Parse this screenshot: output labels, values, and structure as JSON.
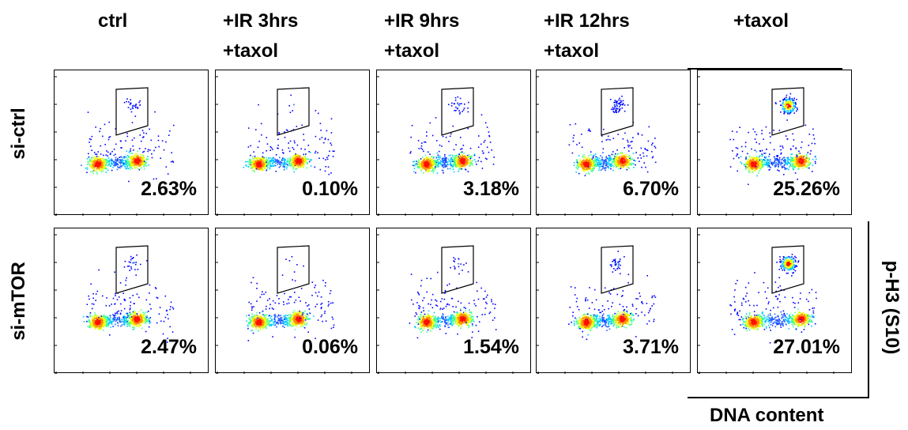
{
  "figure": {
    "column_titles": [
      [
        "ctrl"
      ],
      [
        "+IR 3hrs",
        "+taxol"
      ],
      [
        "+IR 9hrs",
        "+taxol"
      ],
      [
        "+IR 12hrs",
        "+taxol"
      ],
      [
        "+taxol"
      ]
    ],
    "row_titles": [
      "si-ctrl",
      "si-mTOR"
    ],
    "x_axis_label": "DNA content",
    "y_axis_label": "p-H3 (S10)"
  },
  "chart_data": {
    "type": "scatter",
    "subtype": "flow-cytometry-density-grid",
    "xlabel": "DNA content",
    "ylabel": "p-H3 (S10)",
    "columns": [
      "ctrl",
      "+IR 3hrs +taxol",
      "+IR 9hrs +taxol",
      "+IR 12hrs +taxol",
      "+taxol"
    ],
    "rows": [
      "si-ctrl",
      "si-mTOR"
    ],
    "gated_percentages": [
      [
        "2.63%",
        "0.10%",
        "3.18%",
        "6.70%",
        "25.26%"
      ],
      [
        "2.47%",
        "0.06%",
        "1.54%",
        "3.71%",
        "27.01%"
      ]
    ],
    "gated_values": [
      [
        2.63,
        0.1,
        3.18,
        6.7,
        25.26
      ],
      [
        2.47,
        0.06,
        1.54,
        3.71,
        27.01
      ]
    ],
    "colors": [
      "#0000ff",
      "#00c0ff",
      "#00ff80",
      "#ffff00",
      "#ff8000",
      "#ff0000"
    ]
  }
}
